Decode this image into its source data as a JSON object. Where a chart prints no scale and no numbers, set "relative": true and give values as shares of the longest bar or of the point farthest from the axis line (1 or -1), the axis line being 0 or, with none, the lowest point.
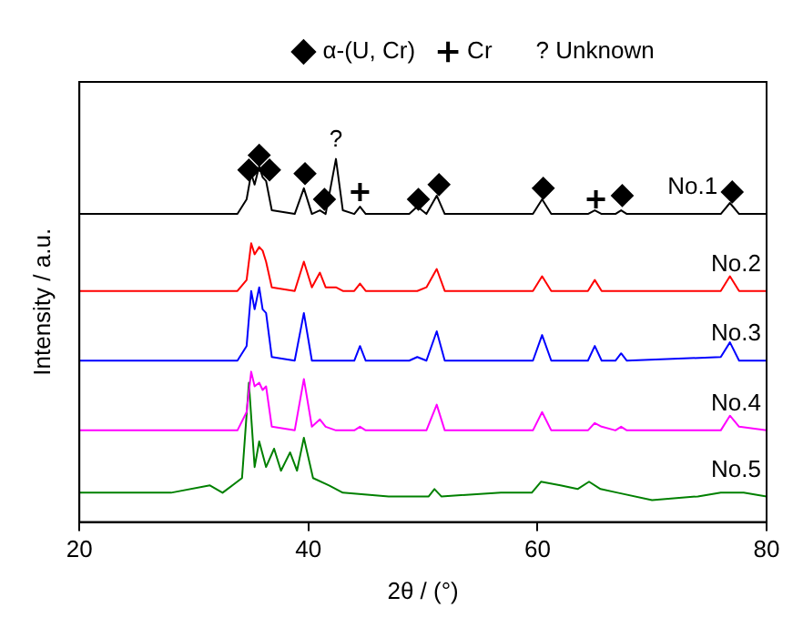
{
  "chart_data": {
    "type": "line",
    "relative": true,
    "xlabel": "2θ / (°)",
    "ylabel": "Intensity / a.u.",
    "xlim": [
      20,
      80
    ],
    "xticks": [
      20,
      40,
      60,
      80
    ],
    "grid": false,
    "legend": "top",
    "marker": "none",
    "x": [
      20,
      30,
      33.8,
      34.6,
      35.0,
      35.3,
      35.7,
      36.0,
      36.3,
      36.8,
      38.8,
      39.6,
      40.3,
      41.0,
      41.5,
      42.4,
      43.0,
      44.0,
      44.5,
      45.0,
      48.8,
      49.5,
      50.3,
      51.2,
      51.9,
      59.6,
      60.4,
      61.2,
      64.4,
      65.0,
      65.6,
      66.8,
      67.3,
      67.8,
      76.0,
      76.8,
      77.6,
      80
    ],
    "series": [
      {
        "name": "No.1",
        "color": "#000000",
        "values": [
          0.84,
          0.84,
          0.84,
          0.88,
          0.95,
          0.92,
          0.97,
          0.94,
          0.93,
          0.85,
          0.84,
          0.91,
          0.84,
          0.85,
          0.84,
          0.99,
          0.85,
          0.84,
          0.86,
          0.84,
          0.84,
          0.86,
          0.84,
          0.89,
          0.84,
          0.84,
          0.88,
          0.84,
          0.84,
          0.85,
          0.84,
          0.84,
          0.85,
          0.84,
          0.84,
          0.87,
          0.84,
          0.84
        ]
      },
      {
        "name": "No.2",
        "color": "#ff0000",
        "values": [
          0.63,
          0.63,
          0.63,
          0.66,
          0.76,
          0.73,
          0.75,
          0.74,
          0.71,
          0.64,
          0.63,
          0.71,
          0.64,
          0.68,
          0.64,
          0.64,
          0.63,
          0.63,
          0.65,
          0.63,
          0.63,
          0.63,
          0.64,
          0.69,
          0.63,
          0.63,
          0.67,
          0.63,
          0.63,
          0.66,
          0.63,
          0.63,
          0.63,
          0.63,
          0.63,
          0.67,
          0.63,
          0.63
        ]
      },
      {
        "name": "No.3",
        "color": "#0000ff",
        "values": [
          0.44,
          0.44,
          0.44,
          0.48,
          0.63,
          0.58,
          0.64,
          0.58,
          0.57,
          0.45,
          0.44,
          0.57,
          0.44,
          0.44,
          0.44,
          0.44,
          0.44,
          0.44,
          0.48,
          0.44,
          0.44,
          0.45,
          0.44,
          0.52,
          0.44,
          0.44,
          0.51,
          0.44,
          0.44,
          0.48,
          0.44,
          0.44,
          0.46,
          0.44,
          0.45,
          0.49,
          0.44,
          0.44
        ]
      },
      {
        "name": "No.4",
        "color": "#ff00ff",
        "values": [
          0.25,
          0.25,
          0.25,
          0.3,
          0.41,
          0.37,
          0.38,
          0.36,
          0.37,
          0.26,
          0.25,
          0.39,
          0.26,
          0.28,
          0.26,
          0.25,
          0.25,
          0.25,
          0.26,
          0.25,
          0.25,
          0.25,
          0.25,
          0.32,
          0.25,
          0.25,
          0.3,
          0.25,
          0.25,
          0.27,
          0.26,
          0.25,
          0.26,
          0.25,
          0.25,
          0.29,
          0.26,
          0.25
        ]
      },
      {
        "name": "No.5",
        "color": "#008000",
        "x": [
          20,
          28,
          31.4,
          32.5,
          34.2,
          34.8,
          35.3,
          35.7,
          36.3,
          37.0,
          37.6,
          38.4,
          39.0,
          39.6,
          40.4,
          41.8,
          43,
          47,
          50.5,
          51.0,
          51.6,
          56.8,
          59.5,
          60.3,
          62.0,
          63.5,
          64.5,
          65.5,
          67,
          70,
          74,
          76,
          78,
          80
        ],
        "values": [
          0.08,
          0.08,
          0.1,
          0.08,
          0.12,
          0.38,
          0.15,
          0.22,
          0.15,
          0.2,
          0.14,
          0.19,
          0.14,
          0.23,
          0.12,
          0.1,
          0.08,
          0.07,
          0.07,
          0.09,
          0.07,
          0.08,
          0.08,
          0.11,
          0.1,
          0.09,
          0.11,
          0.09,
          0.08,
          0.06,
          0.07,
          0.08,
          0.08,
          0.07
        ]
      },
      {
        "name": "α-(U, Cr)",
        "type": "scatter",
        "marker": "diamond",
        "color": "#000000",
        "x": [
          34.8,
          35.7,
          36.6,
          39.7,
          41.4,
          49.6,
          51.4,
          60.5,
          67.4,
          77.0
        ],
        "values": [
          0.96,
          1.0,
          0.96,
          0.95,
          0.88,
          0.88,
          0.92,
          0.91,
          0.89,
          0.9
        ]
      },
      {
        "name": "Cr",
        "type": "scatter",
        "marker": "cross",
        "color": "#000000",
        "x": [
          44.5,
          65.1
        ],
        "values": [
          0.9,
          0.88
        ]
      }
    ],
    "annotations": [
      "? Unknown",
      {
        "text": "?",
        "x": 42.4,
        "y": 0.99
      }
    ]
  }
}
